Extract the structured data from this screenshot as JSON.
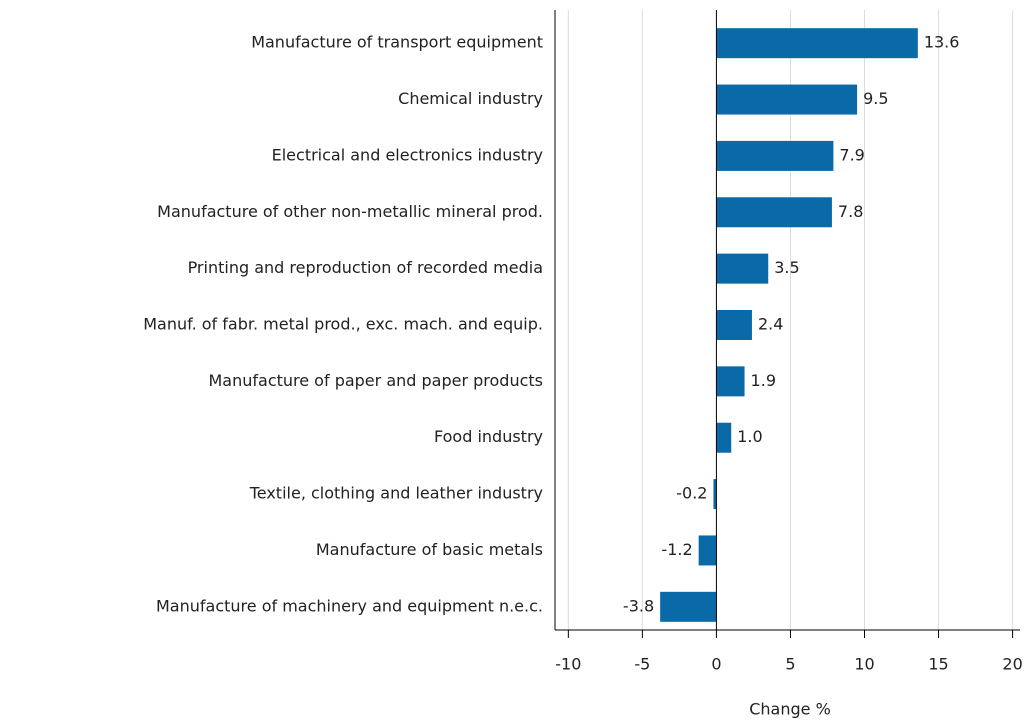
{
  "chart_data": {
    "type": "bar",
    "orientation": "horizontal",
    "x_label": "Change %",
    "categories": [
      "Manufacture of transport equipment",
      "Chemical industry",
      "Electrical and electronics industry",
      "Manufacture of other non-metallic mineral prod.",
      "Printing and reproduction of recorded media",
      "Manuf. of fabr. metal prod., exc. mach. and equip.",
      "Manufacture of paper and paper products",
      "Food industry",
      "Textile, clothing and leather industry",
      "Manufacture of basic metals",
      "Manufacture of machinery and equipment n.e.c."
    ],
    "values": [
      13.6,
      9.5,
      7.9,
      7.8,
      3.5,
      2.4,
      1.9,
      1.0,
      -0.2,
      -1.2,
      -3.8
    ],
    "value_labels": [
      "13.6",
      "9.5",
      "7.9",
      "7.8",
      "3.5",
      "2.4",
      "1.9",
      "1.0",
      "-0.2",
      "-1.2",
      "-3.8"
    ],
    "color": "#0a6aa8",
    "xlim": [
      -10.9,
      20.5
    ],
    "xticks": [
      -10,
      -5,
      0,
      5,
      10,
      15,
      20
    ],
    "grid": true
  }
}
